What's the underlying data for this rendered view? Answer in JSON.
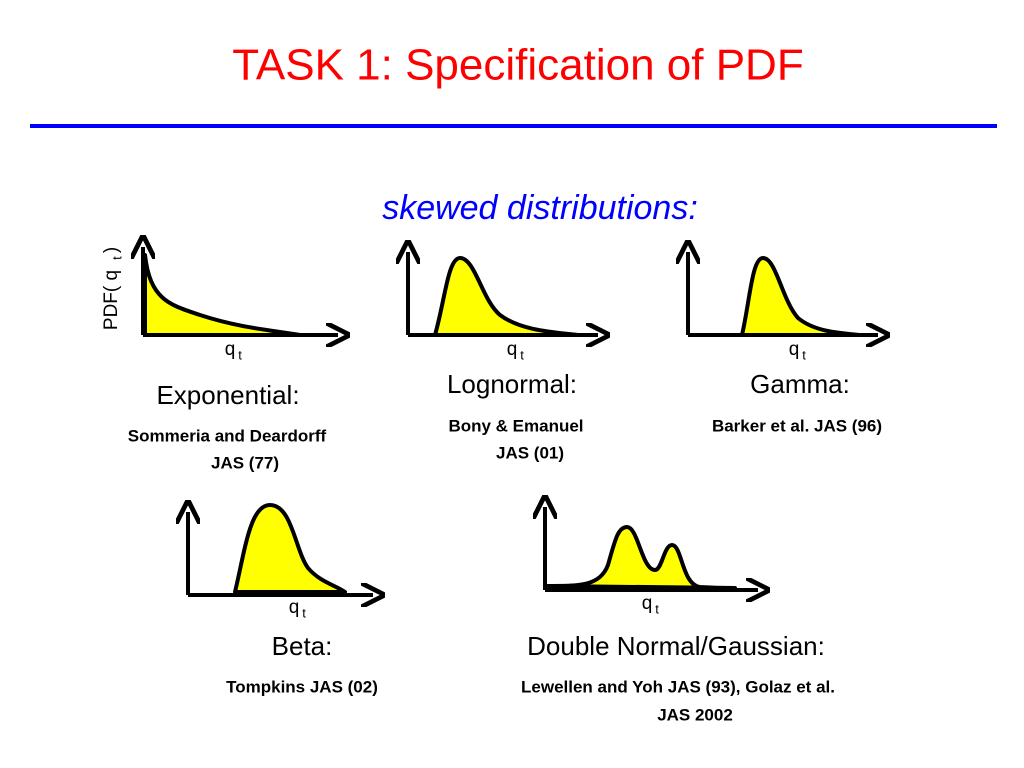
{
  "title": "TASK 1: Specification of PDF",
  "subtitle": "skewed distributions:",
  "y_label": {
    "text": "PDF( q",
    "sub": "t",
    "end": ")"
  },
  "panels": [
    {
      "x_label": "q",
      "x_label_sub": "t",
      "name": "Exponential:",
      "reference": [
        "Sommeria and Deardorff",
        "JAS (77)"
      ]
    },
    {
      "x_label": "q",
      "x_label_sub": "t",
      "name": "Lognormal:",
      "reference": [
        "Bony & Emanuel",
        "JAS (01)"
      ]
    },
    {
      "x_label": "q",
      "x_label_sub": "t",
      "name": "Gamma:",
      "reference": [
        "Barker et al. JAS (96)"
      ]
    },
    {
      "x_label": "q",
      "x_label_sub": "t",
      "name": "Beta:",
      "reference": [
        "Tompkins JAS (02)"
      ]
    },
    {
      "x_label": "q",
      "x_label_sub": "t",
      "name": "Double Normal/Gaussian:",
      "reference": [
        "Lewellen and Yoh JAS (93), Golaz et al.",
        "JAS 2002"
      ]
    }
  ]
}
